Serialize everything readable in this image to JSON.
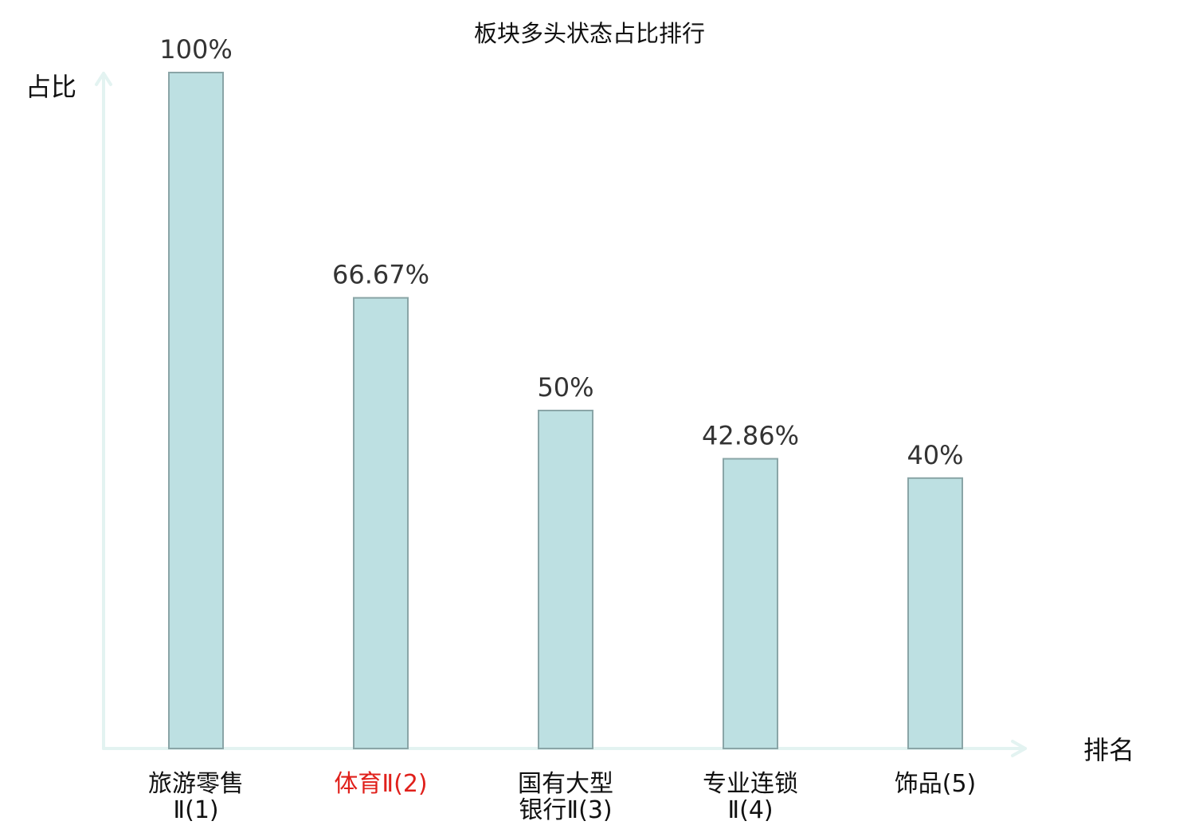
{
  "chart_data": {
    "type": "bar",
    "title": "板块多头状态占比排行",
    "ylabel": "占比",
    "xlabel": "排名",
    "ylim": [
      0,
      100
    ],
    "grid": false,
    "categories": [
      {
        "lines": [
          "旅游零售",
          "Ⅱ(1)"
        ],
        "highlight": false
      },
      {
        "lines": [
          "体育Ⅱ(2)"
        ],
        "highlight": true
      },
      {
        "lines": [
          "国有大型",
          "银行Ⅱ(3)"
        ],
        "highlight": false
      },
      {
        "lines": [
          "专业连锁",
          "Ⅱ(4)"
        ],
        "highlight": false
      },
      {
        "lines": [
          "饰品(5)"
        ],
        "highlight": false
      }
    ],
    "values": [
      100,
      66.67,
      50,
      42.86,
      40
    ],
    "value_labels": [
      "100%",
      "66.67%",
      "50%",
      "42.86%",
      "40%"
    ]
  },
  "colors": {
    "bar_fill": "#bde0e2",
    "bar_stroke": "#8aa5a7",
    "axis": "#e3f3f1",
    "highlight_text": "#e0201b"
  }
}
